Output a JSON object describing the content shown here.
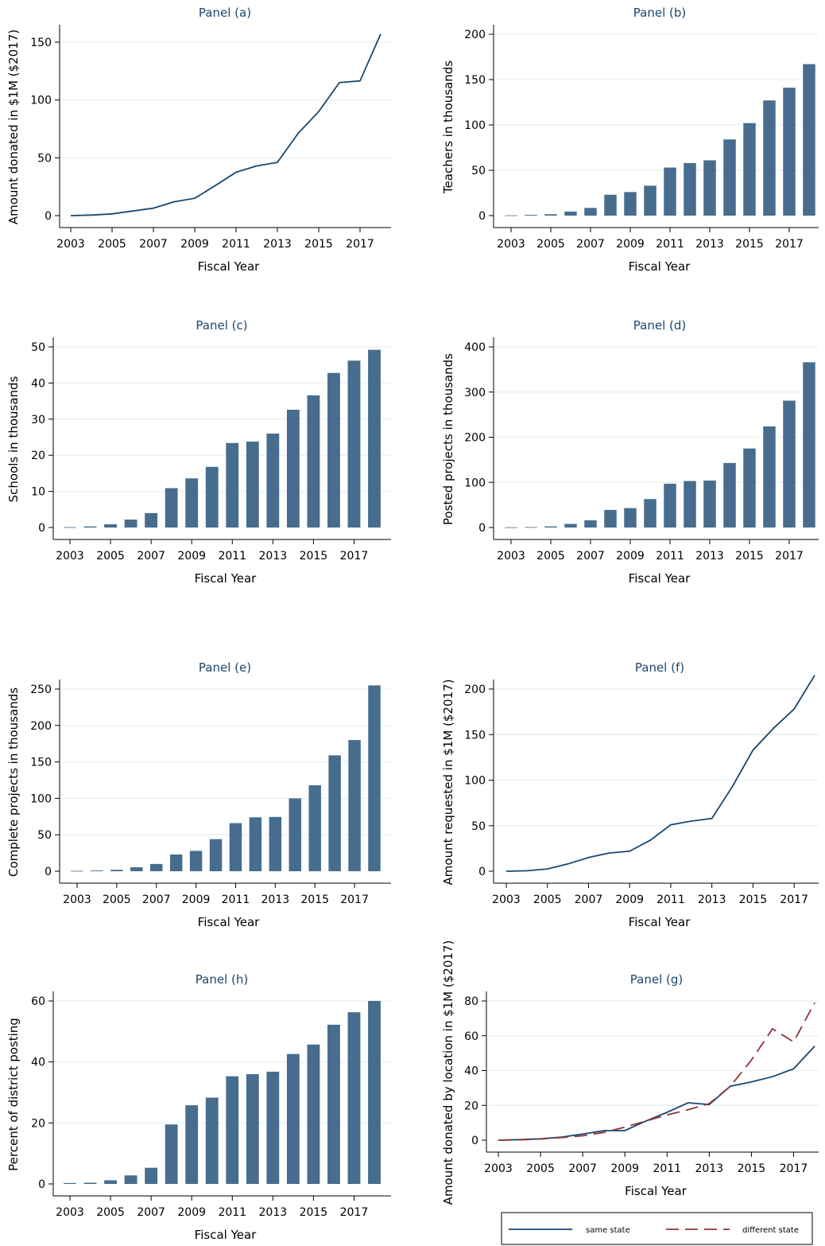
{
  "colors": {
    "bar": "#476d8e",
    "line_same": "#1a476f",
    "line_diff": "#90353b",
    "grid": "#eaf2f3",
    "title": "#1a476f"
  },
  "chart_data": [
    {
      "id": "a",
      "type": "line",
      "title": "Panel (a)",
      "xlabel": "Fiscal Year",
      "ylabel": "Amount donated in $1M ($2017)",
      "x": [
        2003,
        2004,
        2005,
        2006,
        2007,
        2008,
        2009,
        2010,
        2011,
        2012,
        2013,
        2014,
        2015,
        2016,
        2017,
        2018
      ],
      "values": [
        0,
        0.5,
        1.5,
        4,
        6.5,
        12,
        15,
        26,
        37.5,
        43,
        46,
        71,
        90,
        115,
        116.5,
        157
      ],
      "ylim": [
        0,
        160
      ],
      "yticks": [
        0,
        50,
        100,
        150
      ],
      "xticks": [
        2003,
        2005,
        2007,
        2009,
        2011,
        2013,
        2015,
        2017
      ],
      "grid": true
    },
    {
      "id": "b",
      "type": "bar",
      "title": "Panel (b)",
      "xlabel": "Fiscal Year",
      "ylabel": "Teachers in thousands",
      "x": [
        2003,
        2004,
        2005,
        2006,
        2007,
        2008,
        2009,
        2010,
        2011,
        2012,
        2013,
        2014,
        2015,
        2016,
        2017,
        2018
      ],
      "values": [
        0.3,
        0.8,
        1.5,
        4.5,
        8.5,
        23,
        26,
        33,
        53,
        58,
        61,
        84,
        102,
        127,
        141,
        167
      ],
      "ylim": [
        0,
        200
      ],
      "yticks": [
        0,
        50,
        100,
        150,
        200
      ],
      "xticks": [
        2003,
        2005,
        2007,
        2009,
        2011,
        2013,
        2015,
        2017
      ],
      "grid": true
    },
    {
      "id": "c",
      "type": "bar",
      "title": "Panel (c)",
      "xlabel": "Fiscal Year",
      "ylabel": "Schools in thousands",
      "x": [
        2003,
        2004,
        2005,
        2006,
        2007,
        2008,
        2009,
        2010,
        2011,
        2012,
        2013,
        2014,
        2015,
        2016,
        2017,
        2018
      ],
      "values": [
        0.1,
        0.3,
        0.9,
        2.2,
        4,
        10.9,
        13.6,
        16.8,
        23.4,
        23.8,
        26,
        32.6,
        36.6,
        42.8,
        46.2,
        49.2
      ],
      "ylim": [
        0,
        50
      ],
      "yticks": [
        0,
        10,
        20,
        30,
        40,
        50
      ],
      "xticks": [
        2003,
        2005,
        2007,
        2009,
        2011,
        2013,
        2015,
        2017
      ],
      "grid": true
    },
    {
      "id": "d",
      "type": "bar",
      "title": "Panel (d)",
      "xlabel": "Fiscal Year",
      "ylabel": "Posted projects in thousands",
      "x": [
        2003,
        2004,
        2005,
        2006,
        2007,
        2008,
        2009,
        2010,
        2011,
        2012,
        2013,
        2014,
        2015,
        2016,
        2017,
        2018
      ],
      "values": [
        0.5,
        1,
        2.5,
        8,
        16,
        39,
        43,
        63,
        97,
        103,
        104,
        143,
        175,
        224,
        281,
        366
      ],
      "ylim": [
        0,
        400
      ],
      "yticks": [
        0,
        100,
        200,
        300,
        400
      ],
      "xticks": [
        2003,
        2005,
        2007,
        2009,
        2011,
        2013,
        2015,
        2017
      ],
      "grid": true
    },
    {
      "id": "e",
      "type": "bar",
      "title": "Panel (e)",
      "xlabel": "Fiscal Year",
      "ylabel": "Complete projects in thousands",
      "x": [
        2003,
        2004,
        2005,
        2006,
        2007,
        2008,
        2009,
        2010,
        2011,
        2012,
        2013,
        2014,
        2015,
        2016,
        2017,
        2018
      ],
      "values": [
        0.5,
        1,
        2,
        5.5,
        10,
        23,
        28,
        44,
        66,
        74,
        74.5,
        100,
        118,
        159,
        180,
        255
      ],
      "ylim": [
        0,
        260
      ],
      "yticks": [
        0,
        50,
        100,
        150,
        200,
        250
      ],
      "xticks": [
        2003,
        2005,
        2007,
        2009,
        2011,
        2013,
        2015,
        2017
      ],
      "grid": true
    },
    {
      "id": "f",
      "type": "line",
      "title": "Panel (f)",
      "xlabel": "Fiscal Year",
      "ylabel": "Amount requested in $1M ($2017)",
      "x": [
        2003,
        2004,
        2005,
        2006,
        2007,
        2008,
        2009,
        2010,
        2011,
        2012,
        2013,
        2014,
        2015,
        2016,
        2017,
        2018
      ],
      "values": [
        0,
        0.5,
        2.5,
        8,
        15,
        20,
        22,
        34,
        51,
        55,
        58,
        93,
        133,
        157,
        178,
        215
      ],
      "ylim": [
        0,
        220
      ],
      "yticks": [
        0,
        50,
        100,
        150,
        200
      ],
      "xticks": [
        2003,
        2005,
        2007,
        2009,
        2011,
        2013,
        2015,
        2017
      ],
      "grid": true
    },
    {
      "id": "h",
      "type": "bar",
      "title": "Panel (h)",
      "xlabel": "Fiscal Year",
      "ylabel": "Percent of district posting",
      "x": [
        2003,
        2004,
        2005,
        2006,
        2007,
        2008,
        2009,
        2010,
        2011,
        2012,
        2013,
        2014,
        2015,
        2016,
        2017,
        2018
      ],
      "values": [
        0.3,
        0.4,
        1.2,
        2.8,
        5.3,
        19.5,
        25.8,
        28.3,
        35.3,
        36,
        36.8,
        42.6,
        45.7,
        52.2,
        56.3,
        60
      ],
      "ylim": [
        0,
        62
      ],
      "yticks": [
        0,
        20,
        40,
        60
      ],
      "xticks": [
        2003,
        2005,
        2007,
        2009,
        2011,
        2013,
        2015,
        2017
      ],
      "grid": true
    },
    {
      "id": "g",
      "type": "line",
      "title": "Panel (g)",
      "xlabel": "Fiscal Year",
      "ylabel": "Amount donated by location in $1M ($2017)",
      "x": [
        2003,
        2004,
        2005,
        2006,
        2007,
        2008,
        2009,
        2010,
        2011,
        2012,
        2013,
        2014,
        2015,
        2016,
        2017,
        2018
      ],
      "series": [
        {
          "name": "same state",
          "style": "solid",
          "values": [
            0,
            0.3,
            0.8,
            1.8,
            3.5,
            5.5,
            5.5,
            11,
            16,
            21.5,
            20.5,
            31,
            33.5,
            36.5,
            41,
            54
          ]
        },
        {
          "name": "different state",
          "style": "dashed",
          "values": [
            0,
            0.2,
            0.7,
            1.5,
            2.5,
            4.5,
            7.5,
            11,
            14.5,
            17.5,
            21,
            31,
            46,
            64,
            56.5,
            79
          ]
        }
      ],
      "ylim": [
        0,
        85
      ],
      "yticks": [
        0,
        20,
        40,
        60,
        80
      ],
      "xticks": [
        2003,
        2005,
        2007,
        2009,
        2011,
        2013,
        2015,
        2017
      ],
      "grid": true,
      "legend": "bottom"
    }
  ]
}
